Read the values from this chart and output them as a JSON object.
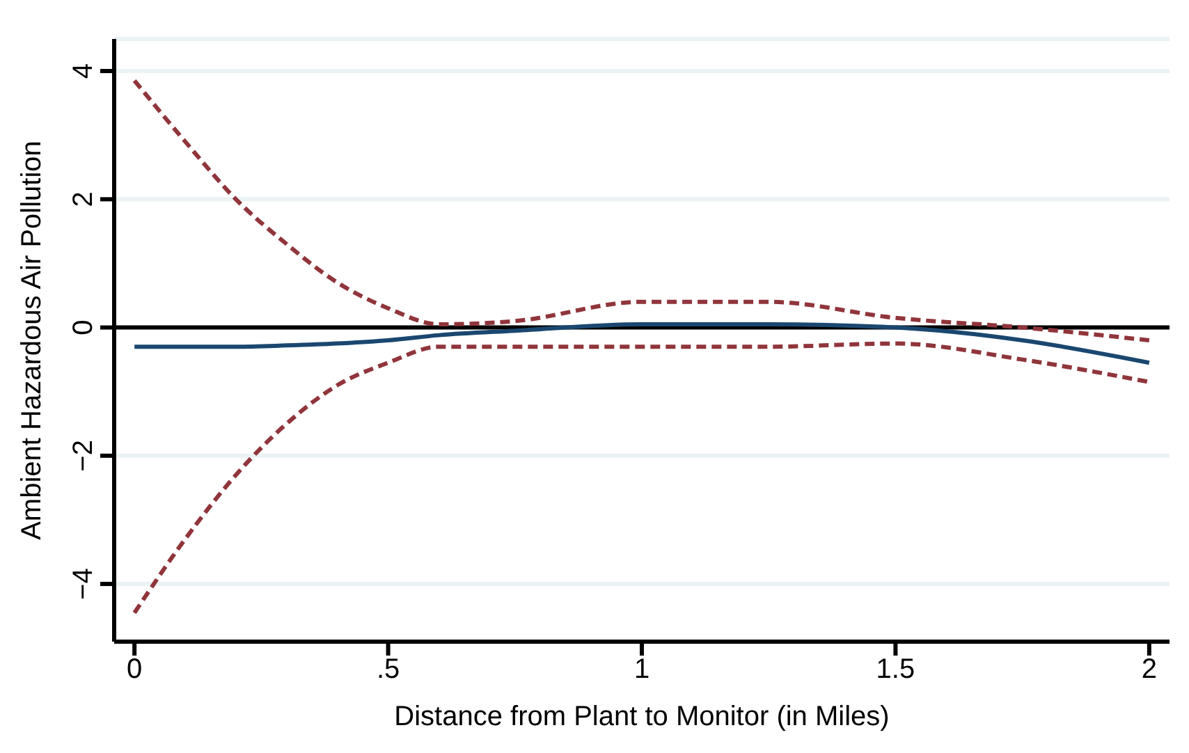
{
  "chart_data": {
    "type": "line",
    "xlabel": "Distance from Plant to Monitor (in Miles)",
    "ylabel": "Ambient Hazardous Air Pollution",
    "x": [
      0,
      0.1,
      0.2,
      0.3,
      0.4,
      0.5,
      0.6,
      0.75,
      1,
      1.25,
      1.5,
      1.75,
      2
    ],
    "series": [
      {
        "color": "#1a476f",
        "line_style": "solid",
        "values": [
          -0.3,
          -0.3,
          -0.3,
          -0.28,
          -0.25,
          -0.2,
          -0.12,
          -0.05,
          0.05,
          0.05,
          0,
          -0.2,
          -0.55
        ]
      },
      {
        "color": "#90353b",
        "line_style": "dashed",
        "values": [
          3.85,
          2.9,
          2.0,
          1.3,
          0.7,
          0.3,
          0.05,
          0.1,
          0.4,
          0.4,
          0.15,
          0,
          -0.2
        ]
      },
      {
        "color": "#90353b",
        "line_style": "dashed",
        "values": [
          -4.45,
          -3.3,
          -2.3,
          -1.5,
          -0.9,
          -0.55,
          -0.3,
          -0.3,
          -0.3,
          -0.3,
          -0.25,
          -0.5,
          -0.85
        ]
      }
    ],
    "xlim": [
      -0.04,
      2.04
    ],
    "ylim": [
      -4.9,
      4.5
    ],
    "xticks": [
      0,
      {
        "value": 0.5,
        "label": ".5"
      },
      1,
      1.5,
      2
    ],
    "yticks": [
      {
        "value": -4,
        "label": "−4"
      },
      {
        "value": -2,
        "label": "−2"
      },
      0,
      2,
      4
    ],
    "grid": "y",
    "ref_lines": [
      {
        "axis": "y",
        "value": 0,
        "color": "#000000"
      }
    ]
  }
}
